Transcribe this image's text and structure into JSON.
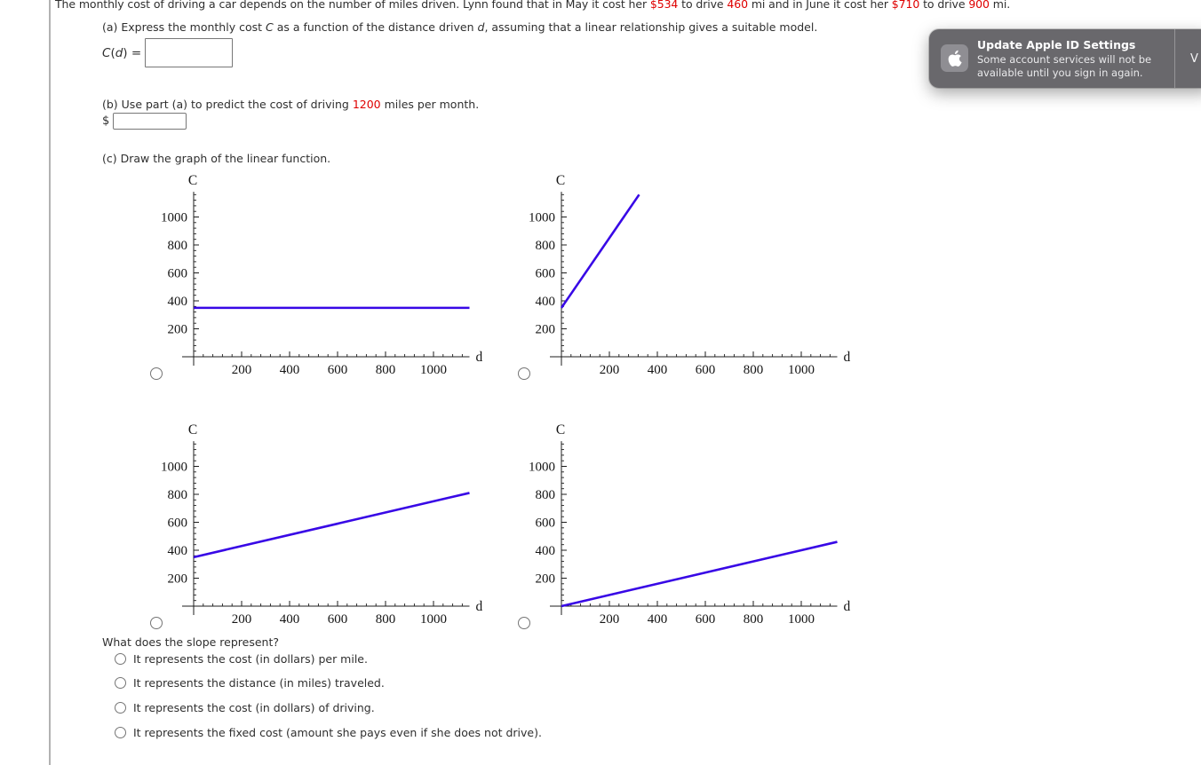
{
  "problem": {
    "intro_segments": [
      {
        "text": "The monthly cost of driving a car depends on the number of miles driven. Lynn found that in May it cost her "
      },
      {
        "text": "$534",
        "style": "red"
      },
      {
        "text": " to drive "
      },
      {
        "text": "460",
        "style": "red"
      },
      {
        "text": " mi and in June it cost her "
      },
      {
        "text": "$710",
        "style": "red"
      },
      {
        "text": " to drive "
      },
      {
        "text": "900",
        "style": "red"
      },
      {
        "text": " mi."
      }
    ],
    "part_a": {
      "text_segments": [
        {
          "text": "(a) Express the monthly cost "
        },
        {
          "text": "C",
          "style": "italic"
        },
        {
          "text": " as a function of the distance driven "
        },
        {
          "text": "d",
          "style": "italic"
        },
        {
          "text": ", assuming that a linear relationship gives a suitable model."
        }
      ],
      "formula": {
        "fn": "C",
        "open": "(",
        "arg": "d",
        "close": ") ="
      },
      "answer_value": ""
    },
    "part_b": {
      "text_segments": [
        {
          "text": "(b) Use part (a) to predict the cost of driving "
        },
        {
          "text": "1200",
          "style": "red"
        },
        {
          "text": " miles per month."
        }
      ],
      "currency": "$",
      "answer_value": ""
    },
    "part_c": {
      "text": "(c) Draw the graph of the linear function."
    }
  },
  "chart_data": [
    {
      "type": "line",
      "title": "",
      "xlabel": "d",
      "ylabel": "C",
      "xlim": [
        0,
        1150
      ],
      "ylim": [
        0,
        1180
      ],
      "x_ticks": [
        200,
        400,
        600,
        800,
        1000
      ],
      "y_ticks": [
        200,
        400,
        600,
        800,
        1000
      ],
      "minor_tick_step": 40,
      "grid": false,
      "line_color": "#3808e6",
      "series": [
        {
          "points": [
            [
              0,
              350
            ],
            [
              1150,
              350
            ]
          ]
        }
      ]
    },
    {
      "type": "line",
      "title": "",
      "xlabel": "d",
      "ylabel": "C",
      "xlim": [
        0,
        1150
      ],
      "ylim": [
        0,
        1180
      ],
      "x_ticks": [
        200,
        400,
        600,
        800,
        1000
      ],
      "y_ticks": [
        200,
        400,
        600,
        800,
        1000
      ],
      "minor_tick_step": 40,
      "grid": false,
      "line_color": "#3808e6",
      "series": [
        {
          "points": [
            [
              0,
              350
            ],
            [
              324,
              1160
            ]
          ]
        }
      ]
    },
    {
      "type": "line",
      "title": "",
      "xlabel": "d",
      "ylabel": "C",
      "xlim": [
        0,
        1150
      ],
      "ylim": [
        0,
        1180
      ],
      "x_ticks": [
        200,
        400,
        600,
        800,
        1000
      ],
      "y_ticks": [
        200,
        400,
        600,
        800,
        1000
      ],
      "minor_tick_step": 40,
      "grid": false,
      "line_color": "#3808e6",
      "series": [
        {
          "points": [
            [
              0,
              350
            ],
            [
              1150,
              810
            ]
          ]
        }
      ]
    },
    {
      "type": "line",
      "title": "",
      "xlabel": "d",
      "ylabel": "C",
      "xlim": [
        0,
        1150
      ],
      "ylim": [
        0,
        1180
      ],
      "x_ticks": [
        200,
        400,
        600,
        800,
        1000
      ],
      "y_ticks": [
        200,
        400,
        600,
        800,
        1000
      ],
      "minor_tick_step": 40,
      "grid": false,
      "line_color": "#3808e6",
      "series": [
        {
          "points": [
            [
              0,
              0
            ],
            [
              1150,
              460
            ]
          ]
        }
      ]
    }
  ],
  "graph_radios": [
    {
      "selected": false
    },
    {
      "selected": false
    },
    {
      "selected": false
    },
    {
      "selected": false
    }
  ],
  "slope_question": {
    "prompt": "What does the slope represent?",
    "options": [
      {
        "label": "It represents the cost (in dollars) per mile.",
        "selected": false
      },
      {
        "label": "It represents the distance (in miles) traveled.",
        "selected": false
      },
      {
        "label": "It represents the cost (in dollars) of driving.",
        "selected": false
      },
      {
        "label": "It represents the fixed cost (amount she pays even if she does not drive).",
        "selected": false
      }
    ]
  },
  "notification": {
    "icon": "apple-logo",
    "title": "Update Apple ID Settings",
    "body": "Some account services will not be available until you sign in again.",
    "action_visible_text": "V",
    "colors": {
      "background": "#69686c",
      "icon_tile": "#8f8e93"
    }
  }
}
